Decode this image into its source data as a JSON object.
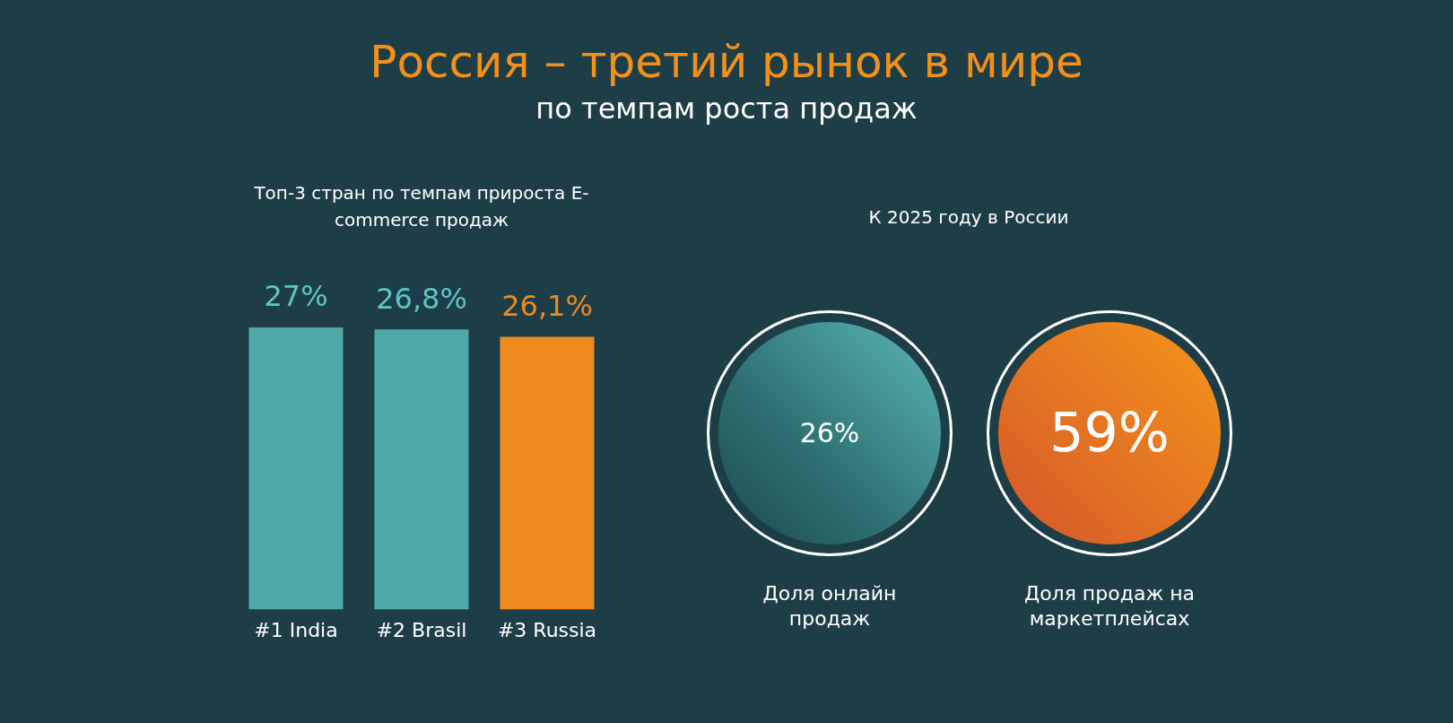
{
  "chart_data": [
    {
      "type": "other",
      "title": "Россия – третий рынок в мире",
      "subtitle": "по темпам роста продаж"
    },
    {
      "type": "bar",
      "title": "Топ-3 стран по темпам прироста E-commerce продаж",
      "categories": [
        "#1 India",
        "#2 Brasil",
        "#3 Russia"
      ],
      "values": [
        27,
        26.8,
        26.1
      ],
      "colors": [
        "#4fa9a6",
        "#4fa9a6",
        "#ee8a1e"
      ],
      "value_labels": [
        "27%",
        "26,8%",
        "26,1%"
      ],
      "tick_labels": "x"
    },
    {
      "type": "other",
      "title": "К 2025 году в России",
      "annotations": [
        "26%",
        "Доля онлайн продаж",
        "59%",
        "Доля продаж на маркетплейсах"
      ]
    }
  ]
}
